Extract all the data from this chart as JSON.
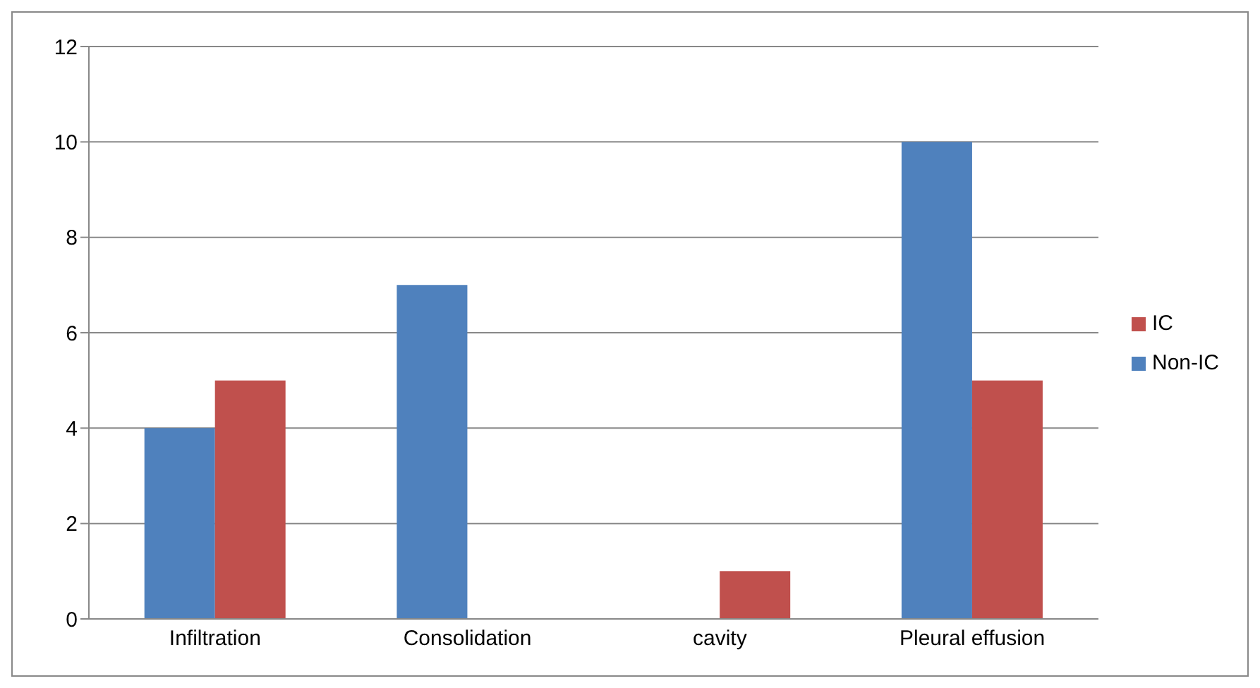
{
  "chart_data": {
    "type": "bar",
    "categories": [
      "Infiltration",
      "Consolidation",
      "cavity",
      "Pleural effusion"
    ],
    "series": [
      {
        "name": "Non-IC",
        "color": "#4f81bd",
        "values": [
          4,
          7,
          0,
          10
        ]
      },
      {
        "name": "IC",
        "color": "#c0504d",
        "values": [
          5,
          0,
          1,
          5
        ]
      }
    ],
    "ylim": [
      0,
      12
    ],
    "yticks": [
      0,
      2,
      4,
      6,
      8,
      10,
      12
    ],
    "grid": "y",
    "legend": "right"
  }
}
